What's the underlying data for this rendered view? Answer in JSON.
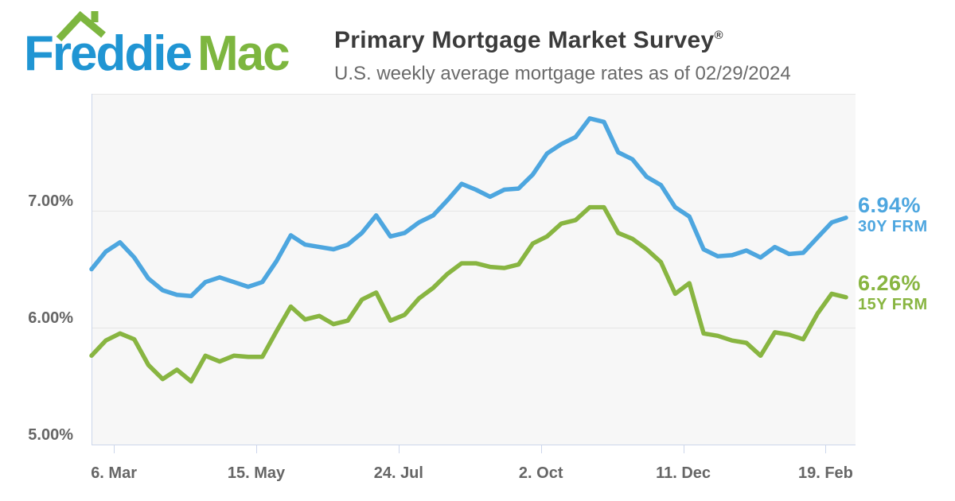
{
  "logo": {
    "text_primary": "Freddie",
    "text_secondary": "Mac"
  },
  "colors": {
    "logo_blue": "#2095D3",
    "logo_green": "#7DB63F",
    "title_text": "#3B3B3B",
    "subtitle_text": "#6A6A6A",
    "axis_label": "#666666",
    "gridline": "#E6E6E6",
    "axis_line": "#CCD6EB",
    "plot_background": "#F7F7F7"
  },
  "chart_data": {
    "type": "line",
    "title": "Primary Mortgage Market Survey",
    "title_registered_mark": "®",
    "subtitle": "U.S. weekly average mortgage rates as of 02/29/2024",
    "x_frequency": "weekly",
    "x_tick_labels": [
      "6. Mar",
      "15. May",
      "24. Jul",
      "2. Oct",
      "11. Dec",
      "19. Feb"
    ],
    "x_tick_day_offsets": [
      11,
      81,
      151,
      221,
      291,
      361
    ],
    "x_total_days": 371,
    "ylim": [
      5.0,
      8.0
    ],
    "y_tick_labels": [
      {
        "value": 7.0,
        "label": "7.00%"
      },
      {
        "value": 6.0,
        "label": "6.00%"
      },
      {
        "value": 5.0,
        "label": "5.00%"
      }
    ],
    "gridline_values": [
      8.0,
      7.0,
      6.0
    ],
    "grid_on": true,
    "legend_position": "right-end-labels",
    "series": [
      {
        "name": "30Y FRM",
        "end_label": "6.94%",
        "color": "#4DA6DF",
        "values": [
          6.5,
          6.65,
          6.73,
          6.6,
          6.42,
          6.32,
          6.28,
          6.27,
          6.39,
          6.43,
          6.39,
          6.35,
          6.39,
          6.57,
          6.79,
          6.71,
          6.69,
          6.67,
          6.71,
          6.81,
          6.96,
          6.78,
          6.81,
          6.9,
          6.96,
          7.09,
          7.23,
          7.18,
          7.12,
          7.18,
          7.19,
          7.31,
          7.49,
          7.57,
          7.63,
          7.79,
          7.76,
          7.5,
          7.44,
          7.29,
          7.22,
          7.03,
          6.95,
          6.67,
          6.61,
          6.62,
          6.66,
          6.6,
          6.69,
          6.63,
          6.64,
          6.77,
          6.9,
          6.94
        ]
      },
      {
        "name": "15Y FRM",
        "end_label": "6.26%",
        "color": "#88B541",
        "values": [
          5.76,
          5.89,
          5.95,
          5.9,
          5.68,
          5.56,
          5.64,
          5.54,
          5.76,
          5.71,
          5.76,
          5.75,
          5.75,
          5.97,
          6.18,
          6.07,
          6.1,
          6.03,
          6.06,
          6.24,
          6.3,
          6.06,
          6.11,
          6.25,
          6.34,
          6.46,
          6.55,
          6.55,
          6.52,
          6.51,
          6.54,
          6.72,
          6.78,
          6.89,
          6.92,
          7.03,
          7.03,
          6.81,
          6.76,
          6.67,
          6.56,
          6.29,
          6.38,
          5.95,
          5.93,
          5.89,
          5.87,
          5.76,
          5.96,
          5.94,
          5.9,
          6.12,
          6.29,
          6.26
        ]
      }
    ]
  }
}
